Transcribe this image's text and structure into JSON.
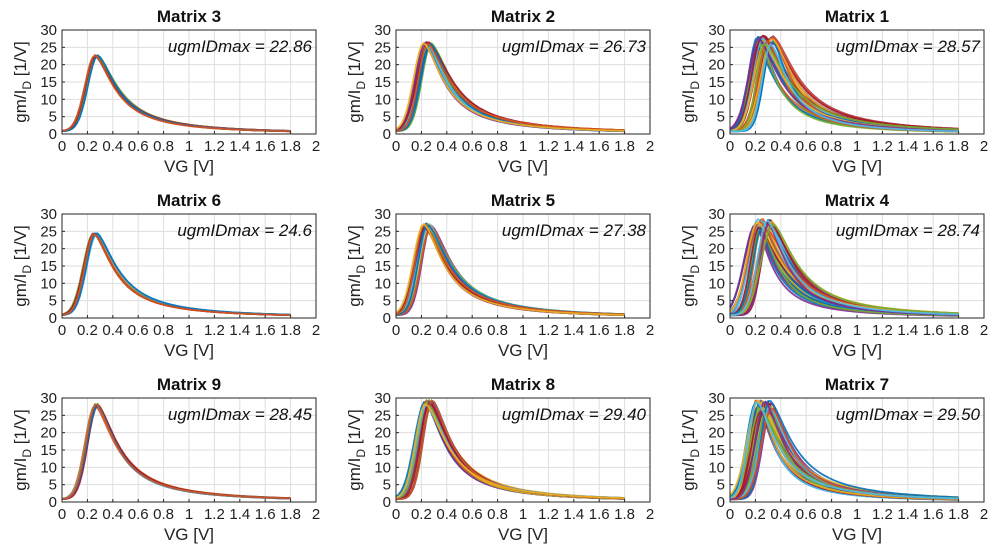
{
  "chart_data": [
    {
      "type": "line",
      "title": "Matrix 3",
      "annotation": "ugmIDmax = 22.86",
      "peak": 22.86,
      "peak_vg": 0.27,
      "spread": "narrow",
      "xlabel": "VG [V]",
      "ylabel_main": "gm/I",
      "ylabel_sub": "D",
      "ylabel_unit": " [1/V]",
      "xlim": [
        0,
        2
      ],
      "ylim": [
        0,
        30
      ],
      "xticks": [
        "0",
        "0.2",
        "0.4",
        "0.6",
        "0.8",
        "1",
        "1.2",
        "1.4",
        "1.6",
        "1.8",
        "2"
      ],
      "yticks": [
        "0",
        "5",
        "10",
        "15",
        "20",
        "25",
        "30"
      ],
      "grid": true
    },
    {
      "type": "line",
      "title": "Matrix 2",
      "annotation": "ugmIDmax = 26.73",
      "peak": 26.73,
      "peak_vg": 0.25,
      "spread": "medium",
      "xlabel": "VG [V]",
      "ylabel_main": "gm/I",
      "ylabel_sub": "D",
      "ylabel_unit": " [1/V]",
      "xlim": [
        0,
        2
      ],
      "ylim": [
        0,
        30
      ],
      "xticks": [
        "0",
        "0.2",
        "0.4",
        "0.6",
        "0.8",
        "1",
        "1.2",
        "1.4",
        "1.6",
        "1.8",
        "2"
      ],
      "yticks": [
        "0",
        "5",
        "10",
        "15",
        "20",
        "25",
        "30"
      ],
      "grid": true
    },
    {
      "type": "line",
      "title": "Matrix 1",
      "annotation": "ugmIDmax = 28.57",
      "peak": 28.57,
      "peak_vg": 0.28,
      "spread": "wide",
      "xlabel": "VG [V]",
      "ylabel_main": "gm/I",
      "ylabel_sub": "D",
      "ylabel_unit": " [1/V]",
      "xlim": [
        0,
        2
      ],
      "ylim": [
        0,
        30
      ],
      "xticks": [
        "0",
        "0.2",
        "0.4",
        "0.6",
        "0.8",
        "1",
        "1.2",
        "1.4",
        "1.6",
        "1.8",
        "2"
      ],
      "yticks": [
        "0",
        "5",
        "10",
        "15",
        "20",
        "25",
        "30"
      ],
      "grid": true
    },
    {
      "type": "line",
      "title": "Matrix 6",
      "annotation": "ugmIDmax = 24.6",
      "peak": 24.6,
      "peak_vg": 0.26,
      "spread": "narrow",
      "xlabel": "VG [V]",
      "ylabel_main": "gm/I",
      "ylabel_sub": "D",
      "ylabel_unit": " [1/V]",
      "xlim": [
        0,
        2
      ],
      "ylim": [
        0,
        30
      ],
      "xticks": [
        "0",
        "0.2",
        "0.4",
        "0.6",
        "0.8",
        "1",
        "1.2",
        "1.4",
        "1.6",
        "1.8",
        "2"
      ],
      "yticks": [
        "0",
        "5",
        "10",
        "15",
        "20",
        "25",
        "30"
      ],
      "grid": true
    },
    {
      "type": "line",
      "title": "Matrix 5",
      "annotation": "ugmIDmax = 27.38",
      "peak": 27.38,
      "peak_vg": 0.25,
      "spread": "medium",
      "xlabel": "VG [V]",
      "ylabel_main": "gm/I",
      "ylabel_sub": "D",
      "ylabel_unit": " [1/V]",
      "xlim": [
        0,
        2
      ],
      "ylim": [
        0,
        30
      ],
      "xticks": [
        "0",
        "0.2",
        "0.4",
        "0.6",
        "0.8",
        "1",
        "1.2",
        "1.4",
        "1.6",
        "1.8",
        "2"
      ],
      "yticks": [
        "0",
        "5",
        "10",
        "15",
        "20",
        "25",
        "30"
      ],
      "grid": true
    },
    {
      "type": "line",
      "title": "Matrix 4",
      "annotation": "ugmIDmax = 28.74",
      "peak": 28.74,
      "peak_vg": 0.27,
      "spread": "wide",
      "xlabel": "VG [V]",
      "ylabel_main": "gm/I",
      "ylabel_sub": "D",
      "ylabel_unit": " [1/V]",
      "xlim": [
        0,
        2
      ],
      "ylim": [
        0,
        30
      ],
      "xticks": [
        "0",
        "0.2",
        "0.4",
        "0.6",
        "0.8",
        "1",
        "1.2",
        "1.4",
        "1.6",
        "1.8",
        "2"
      ],
      "yticks": [
        "0",
        "5",
        "10",
        "15",
        "20",
        "25",
        "30"
      ],
      "grid": true
    },
    {
      "type": "line",
      "title": "Matrix 9",
      "annotation": "ugmIDmax = 28.45",
      "peak": 28.45,
      "peak_vg": 0.27,
      "spread": "narrow",
      "xlabel": "VG [V]",
      "ylabel_main": "gm/I",
      "ylabel_sub": "D",
      "ylabel_unit": " [1/V]",
      "xlim": [
        0,
        2
      ],
      "ylim": [
        0,
        30
      ],
      "xticks": [
        "0",
        "0.2",
        "0.4",
        "0.6",
        "0.8",
        "1",
        "1.2",
        "1.4",
        "1.6",
        "1.8",
        "2"
      ],
      "yticks": [
        "0",
        "5",
        "10",
        "15",
        "20",
        "25",
        "30"
      ],
      "grid": true
    },
    {
      "type": "line",
      "title": "Matrix 8",
      "annotation": "ugmIDmax = 29.40",
      "peak": 29.4,
      "peak_vg": 0.26,
      "spread": "medium",
      "xlabel": "VG [V]",
      "ylabel_main": "gm/I",
      "ylabel_sub": "D",
      "ylabel_unit": " [1/V]",
      "xlim": [
        0,
        2
      ],
      "ylim": [
        0,
        30
      ],
      "xticks": [
        "0",
        "0.2",
        "0.4",
        "0.6",
        "0.8",
        "1",
        "1.2",
        "1.4",
        "1.6",
        "1.8",
        "2"
      ],
      "yticks": [
        "0",
        "5",
        "10",
        "15",
        "20",
        "25",
        "30"
      ],
      "grid": true
    },
    {
      "type": "line",
      "title": "Matrix 7",
      "annotation": "ugmIDmax = 29.50",
      "peak": 29.5,
      "peak_vg": 0.27,
      "spread": "wide",
      "xlabel": "VG [V]",
      "ylabel_main": "gm/I",
      "ylabel_sub": "D",
      "ylabel_unit": " [1/V]",
      "xlim": [
        0,
        2
      ],
      "ylim": [
        0,
        30
      ],
      "xticks": [
        "0",
        "0.2",
        "0.4",
        "0.6",
        "0.8",
        "1",
        "1.2",
        "1.4",
        "1.6",
        "1.8",
        "2"
      ],
      "yticks": [
        "0",
        "5",
        "10",
        "15",
        "20",
        "25",
        "30"
      ],
      "grid": true
    }
  ],
  "series_colors": [
    "#0072bd",
    "#d95319",
    "#edb120",
    "#7e2f8e",
    "#77ac30",
    "#4dbeee",
    "#a2142f"
  ]
}
